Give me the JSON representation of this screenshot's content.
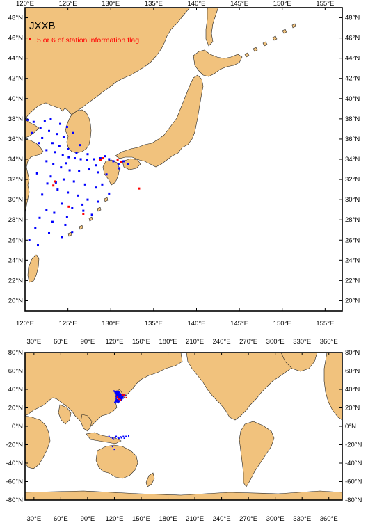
{
  "top_map": {
    "title": "JXXB",
    "legend_label": "5 or 6 of station information flag",
    "x_ticks": [
      "120°E",
      "125°E",
      "130°E",
      "135°E",
      "140°E",
      "145°E",
      "150°E",
      "155°E"
    ],
    "y_ticks": [
      "20°N",
      "22°N",
      "24°N",
      "26°N",
      "28°N",
      "30°N",
      "32°N",
      "34°N",
      "36°N",
      "38°N",
      "40°N",
      "42°N",
      "44°N",
      "46°N",
      "48°N"
    ]
  },
  "bottom_map": {
    "x_ticks": [
      "30°E",
      "60°E",
      "90°E",
      "120°E",
      "150°E",
      "180°E",
      "210°E",
      "240°E",
      "270°E",
      "300°E",
      "330°E",
      "360°E"
    ],
    "y_ticks": [
      "80°N",
      "60°N",
      "40°N",
      "20°N",
      "0°N",
      "-20°N",
      "-40°N",
      "-60°N",
      "-80°N"
    ]
  },
  "colors": {
    "land": "#f1c27d",
    "ocean": "#ffffff",
    "station": "#0000ff",
    "flagged_station": "#ff0000"
  },
  "stations": [
    [
      119.5,
      38.2
    ],
    [
      120.3,
      37.9
    ],
    [
      121.0,
      37.7
    ],
    [
      122.3,
      37.8
    ],
    [
      123.0,
      38.0
    ],
    [
      124.1,
      37.5
    ],
    [
      121.8,
      37.1
    ],
    [
      122.8,
      36.8
    ],
    [
      123.7,
      36.5
    ],
    [
      124.5,
      36.2
    ],
    [
      122.0,
      36.1
    ],
    [
      123.2,
      35.6
    ],
    [
      124.0,
      35.3
    ],
    [
      125.0,
      35.0
    ],
    [
      122.5,
      34.9
    ],
    [
      123.5,
      34.7
    ],
    [
      124.4,
      34.4
    ],
    [
      125.1,
      34.2
    ],
    [
      125.8,
      34.1
    ],
    [
      126.5,
      34.0
    ],
    [
      127.2,
      33.9
    ],
    [
      128.0,
      34.0
    ],
    [
      128.8,
      34.1
    ],
    [
      129.3,
      34.3
    ],
    [
      129.8,
      34.0
    ],
    [
      130.3,
      33.8
    ],
    [
      130.9,
      33.5
    ],
    [
      131.5,
      33.8
    ],
    [
      132.0,
      33.5
    ],
    [
      131.0,
      33.1
    ],
    [
      122.5,
      33.8
    ],
    [
      123.3,
      33.5
    ],
    [
      124.2,
      33.2
    ],
    [
      125.2,
      32.9
    ],
    [
      126.3,
      32.8
    ],
    [
      127.5,
      33.0
    ],
    [
      128.5,
      32.7
    ],
    [
      129.5,
      32.5
    ],
    [
      123.0,
      32.3
    ],
    [
      124.5,
      32.0
    ],
    [
      125.7,
      31.8
    ],
    [
      127.0,
      31.5
    ],
    [
      128.3,
      31.2
    ],
    [
      123.8,
      31.0
    ],
    [
      125.0,
      30.7
    ],
    [
      126.2,
      30.4
    ],
    [
      127.3,
      30.0
    ],
    [
      128.5,
      29.8
    ],
    [
      124.3,
      29.6
    ],
    [
      125.5,
      29.2
    ],
    [
      126.8,
      28.9
    ],
    [
      127.8,
      28.5
    ],
    [
      122.5,
      29.0
    ],
    [
      121.7,
      28.2
    ],
    [
      123.2,
      27.8
    ],
    [
      124.7,
      27.5
    ],
    [
      121.2,
      27.2
    ],
    [
      122.8,
      26.7
    ],
    [
      124.3,
      26.3
    ],
    [
      125.5,
      26.8
    ],
    [
      120.5,
      26.0
    ],
    [
      121.5,
      25.5
    ],
    [
      123.6,
      31.7
    ],
    [
      124.8,
      33.6
    ],
    [
      126.0,
      34.6
    ],
    [
      127.3,
      34.5
    ],
    [
      128.3,
      33.4
    ],
    [
      129.0,
      31.5
    ],
    [
      129.8,
      30.6
    ],
    [
      126.7,
      29.5
    ],
    [
      124.9,
      28.3
    ],
    [
      123.4,
      28.7
    ],
    [
      122.0,
      30.5
    ],
    [
      122.6,
      31.6
    ],
    [
      121.4,
      32.6
    ],
    [
      120.8,
      36.6
    ],
    [
      121.6,
      35.6
    ],
    [
      126.4,
      35.4
    ],
    [
      125.6,
      36.6
    ],
    [
      124.9,
      37.2
    ]
  ],
  "flagged_stations": [
    [
      123.5,
      31.8
    ],
    [
      123.3,
      31.4
    ],
    [
      125.1,
      29.3
    ],
    [
      126.8,
      28.6
    ],
    [
      128.8,
      33.9
    ],
    [
      129.1,
      34.1
    ],
    [
      130.8,
      33.9
    ],
    [
      133.3,
      31.1
    ],
    [
      131.2,
      33.7
    ]
  ],
  "world_stations": [
    [
      116,
      -12
    ],
    [
      118,
      -13
    ],
    [
      121,
      -12.5
    ],
    [
      124,
      -12
    ],
    [
      127,
      -11.5
    ],
    [
      130,
      -11
    ],
    [
      133,
      -11
    ],
    [
      136,
      -10.5
    ],
    [
      114,
      -11
    ],
    [
      119,
      -14
    ],
    [
      122,
      -11
    ],
    [
      125,
      -13
    ],
    [
      128,
      -12.5
    ],
    [
      131,
      -13
    ],
    [
      118,
      -22
    ],
    [
      120,
      -25
    ]
  ]
}
